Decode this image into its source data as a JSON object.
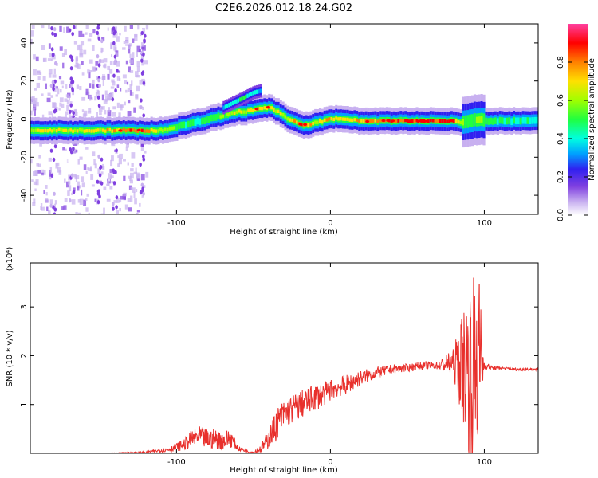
{
  "title": "C2E6.2026.012.18.24.G02",
  "chart_data": [
    {
      "type": "heatmap",
      "xlabel": "Height of straight line (km)",
      "ylabel": "Frequency (Hz)",
      "xlim": [
        -195,
        135
      ],
      "ylim": [
        -50,
        50
      ],
      "xticks": [
        -100,
        0,
        100
      ],
      "yticks": [
        -40,
        -20,
        0,
        20,
        40
      ],
      "colorbar": {
        "label": "Normalized spectral amplitude",
        "range": [
          0,
          1
        ],
        "ticks": [
          0.0,
          0.2,
          0.4,
          0.6,
          0.8
        ],
        "colors": [
          "#ffffff",
          "#c8b0f0",
          "#8040e0",
          "#3020f0",
          "#00a0ff",
          "#00ffe0",
          "#20ff40",
          "#a0ff00",
          "#ffe000",
          "#ff8000",
          "#ff0000",
          "#ff40a0"
        ]
      },
      "ridge": {
        "x": [
          -195,
          -170,
          -150,
          -130,
          -120,
          -110,
          -100,
          -90,
          -80,
          -70,
          -60,
          -55,
          -50,
          -45,
          -40,
          -35,
          -30,
          -25,
          -20,
          -15,
          -10,
          -5,
          0,
          10,
          20,
          40,
          60,
          80,
          85,
          90,
          95,
          100,
          110,
          120,
          135
        ],
        "y": [
          -6,
          -6,
          -6,
          -6,
          -6,
          -6,
          -4,
          -2,
          0,
          2,
          4,
          4,
          5,
          6,
          6,
          4,
          1,
          -1,
          -3,
          -3,
          -2,
          -1,
          0,
          0,
          -1,
          -1,
          -1,
          -1,
          -2,
          -1,
          0,
          -1,
          -1,
          -1,
          -1
        ],
        "amplitude": [
          0.7,
          0.75,
          0.75,
          0.85,
          0.85,
          0.7,
          0.55,
          0.5,
          0.55,
          0.6,
          0.7,
          0.75,
          0.8,
          0.8,
          0.8,
          0.7,
          0.65,
          0.75,
          0.85,
          0.8,
          0.7,
          0.75,
          0.8,
          0.75,
          0.8,
          0.85,
          0.9,
          0.9,
          0.6,
          0.55,
          0.6,
          0.55,
          0.55,
          0.5,
          0.5
        ]
      },
      "secondary_branch": {
        "x": [
          -70,
          -65,
          -60,
          -55,
          -50,
          -45
        ],
        "y": [
          6,
          8,
          10,
          12,
          14,
          15
        ],
        "amplitude": [
          0.4,
          0.45,
          0.5,
          0.5,
          0.45,
          0.35
        ]
      }
    },
    {
      "type": "line",
      "xlabel": "Height of straight line (km)",
      "ylabel": "SNR (10 * v/v)",
      "y_multiplier": "(x10⁴)",
      "xlim": [
        -195,
        135
      ],
      "ylim": [
        0,
        3.9
      ],
      "xticks": [
        -100,
        0,
        100
      ],
      "yticks": [
        1,
        2,
        3
      ],
      "series": [
        {
          "color": "#e8302c",
          "x": [
            -195,
            -150,
            -120,
            -105,
            -95,
            -90,
            -85,
            -80,
            -75,
            -70,
            -65,
            -60,
            -55,
            -50,
            -45,
            -40,
            -35,
            -30,
            -25,
            -20,
            -15,
            -10,
            -5,
            0,
            5,
            10,
            20,
            30,
            40,
            50,
            60,
            70,
            80,
            85,
            88,
            90,
            92,
            94,
            96,
            98,
            100,
            105,
            110,
            120,
            135
          ],
          "y": [
            0.0,
            0.0,
            0.02,
            0.08,
            0.18,
            0.3,
            0.35,
            0.28,
            0.3,
            0.25,
            0.32,
            0.1,
            0.05,
            0.02,
            0.1,
            0.3,
            0.6,
            0.8,
            0.9,
            1.0,
            1.05,
            1.15,
            1.2,
            1.3,
            1.35,
            1.4,
            1.55,
            1.65,
            1.72,
            1.75,
            1.8,
            1.8,
            1.85,
            1.8,
            1.8,
            1.75,
            1.7,
            1.85,
            2.0,
            1.9,
            1.8,
            1.75,
            1.75,
            1.72,
            1.72
          ],
          "noise_envelope": [
            0.0,
            0.0,
            0.02,
            0.05,
            0.12,
            0.18,
            0.2,
            0.22,
            0.2,
            0.2,
            0.2,
            0.05,
            0.03,
            0.03,
            0.1,
            0.2,
            0.35,
            0.3,
            0.3,
            0.3,
            0.28,
            0.28,
            0.25,
            0.22,
            0.2,
            0.2,
            0.15,
            0.12,
            0.1,
            0.08,
            0.08,
            0.08,
            0.3,
            1.0,
            1.4,
            1.8,
            1.9,
            1.9,
            1.9,
            1.2,
            0.1,
            0.04,
            0.03,
            0.03,
            0.03
          ]
        }
      ]
    }
  ]
}
